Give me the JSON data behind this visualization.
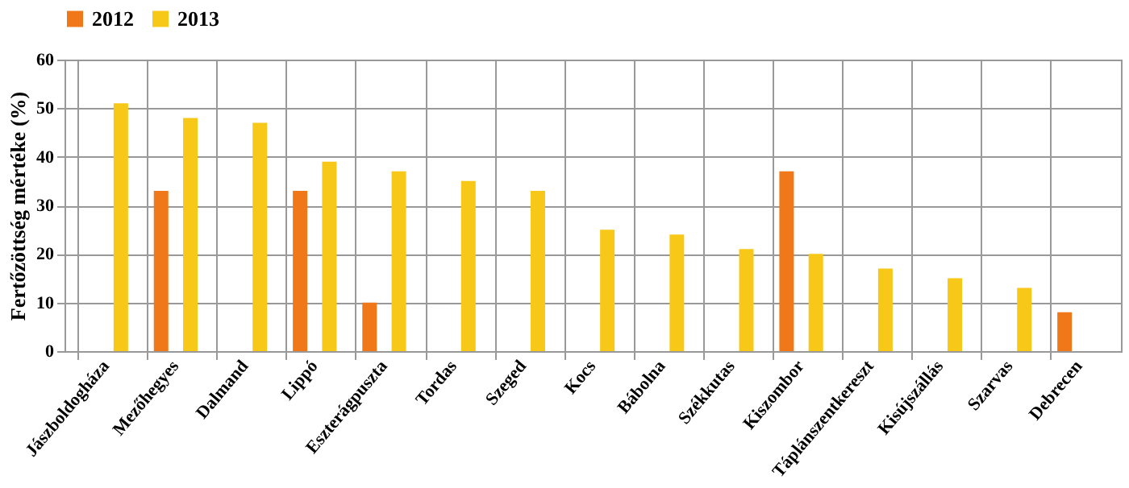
{
  "chart_data": {
    "type": "bar",
    "ylabel": "Fertőzöttség mértéke (%)",
    "categories": [
      "Jászboldogháza",
      "Mezőhegyes",
      "Dalmand",
      "Lippó",
      "Eszterágpuszta",
      "Tordas",
      "Szeged",
      "Kocs",
      "Bábolna",
      "Székkutas",
      "Kiszombor",
      "Táplánszentkereszt",
      "Kisújszállás",
      "Szarvas",
      "Debrecen"
    ],
    "series": [
      {
        "name": "2012",
        "color": "#f07818",
        "values": [
          0,
          33,
          0,
          33,
          10,
          0,
          0,
          0,
          0,
          0,
          37,
          0,
          0,
          0,
          8
        ]
      },
      {
        "name": "2013",
        "color": "#f8c818",
        "values": [
          51,
          48,
          47,
          39,
          37,
          35,
          33,
          25,
          24,
          21,
          20,
          17,
          15,
          13,
          0
        ]
      }
    ],
    "ylim": [
      0,
      60
    ],
    "yticks": [
      0,
      10,
      20,
      30,
      40,
      50,
      60
    ],
    "grid": true,
    "legend": "top"
  }
}
